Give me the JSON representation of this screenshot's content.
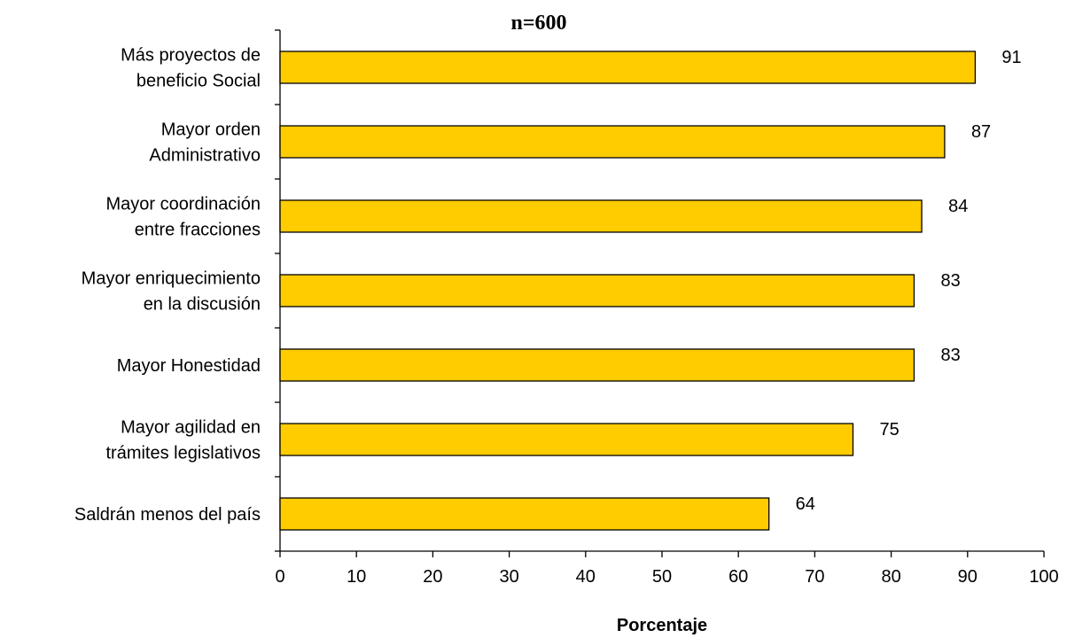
{
  "chart_data": {
    "type": "bar",
    "orientation": "horizontal",
    "title": "n=600",
    "xlabel": "Porcentaje",
    "ylabel": "",
    "xlim": [
      0,
      100
    ],
    "x_ticks": [
      "0",
      "10",
      "20",
      "30",
      "40",
      "50",
      "60",
      "70",
      "80",
      "90",
      "100"
    ],
    "categories": [
      [
        "Más proyectos de",
        "beneficio Social"
      ],
      [
        "Mayor orden",
        "Administrativo"
      ],
      [
        "Mayor coordinación",
        "entre fracciones"
      ],
      [
        "Mayor enriquecimiento",
        "en la discusión"
      ],
      [
        "Mayor Honestidad"
      ],
      [
        "Mayor agilidad en",
        "trámites legislativos"
      ],
      [
        "Saldrán menos del país"
      ]
    ],
    "values": [
      91,
      87,
      84,
      83,
      83,
      75,
      64
    ],
    "data_labels": [
      "91",
      "87",
      "84",
      "83",
      "83",
      "75",
      "64"
    ],
    "bar_color": "#FFCC00",
    "grid": false,
    "legend": "none"
  }
}
